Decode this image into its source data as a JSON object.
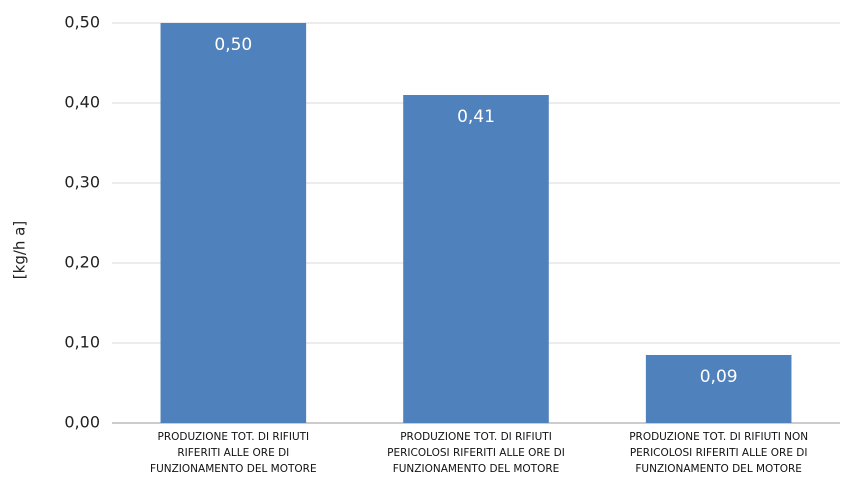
{
  "chart_data": {
    "type": "bar",
    "y_label": "[kg/h a]",
    "categories": [
      "PRODUZIONE TOT. DI RIFIUTI RIFERITI ALLE ORE DI FUNZIONAMENTO DEL MOTORE",
      "PRODUZIONE TOT. DI RIFIUTI PERICOLOSI RIFERITI ALLE ORE DI FUNZIONAMENTO DEL MOTORE",
      "PRODUZIONE TOT. DI RIFIUTI NON PERICOLOSI RIFERITI ALLE ORE DI FUNZIONAMENTO DEL MOTORE"
    ],
    "values": [
      0.5,
      0.41,
      0.085
    ],
    "value_labels": [
      "0,50",
      "0,41",
      "0,09"
    ],
    "color": "#4f81bd",
    "ylim": [
      0,
      0.5
    ],
    "yticks": [
      {
        "value": 0,
        "label": "0,00"
      },
      {
        "value": 0.1,
        "label": "0,10"
      },
      {
        "value": 0.2,
        "label": "0,20"
      },
      {
        "value": 0.3,
        "label": "0,30"
      },
      {
        "value": 0.4,
        "label": "0,40"
      },
      {
        "value": 0.5,
        "label": "0,50"
      }
    ],
    "grid": true
  }
}
